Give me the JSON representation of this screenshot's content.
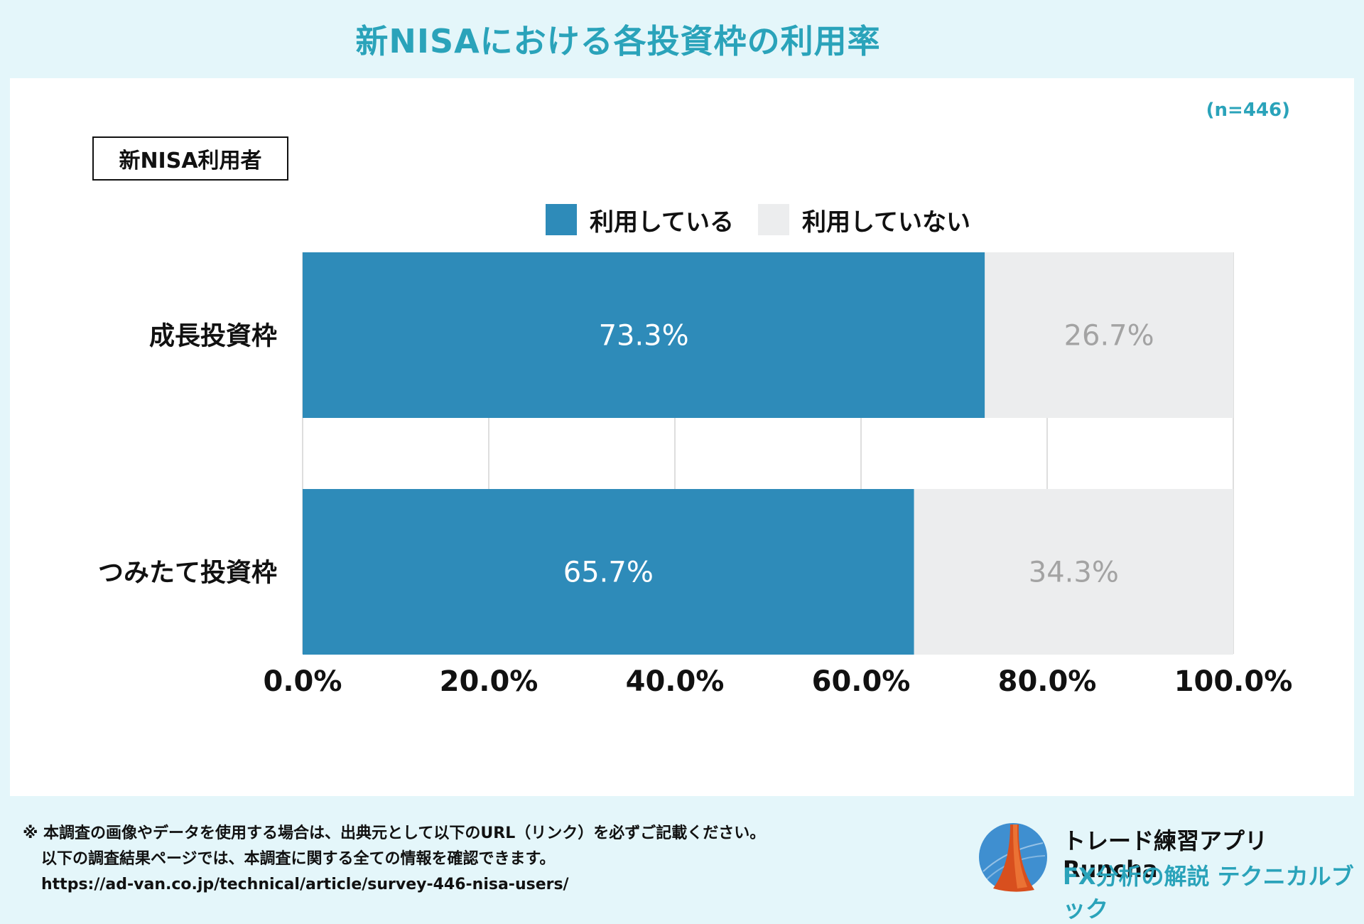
{
  "header": {
    "title": "新NISAにおける各投資枠の利用率"
  },
  "chart_meta": {
    "sample_size": "(n=446)",
    "group_label": "新NISA利用者"
  },
  "colors": {
    "using": "#2e8bb9",
    "not_using": "#ecedee",
    "accent": "#2aa3ba"
  },
  "chart_data": {
    "type": "bar",
    "orientation": "horizontal-stacked-100",
    "categories": [
      "成長投資枠",
      "つみたて投資枠"
    ],
    "series": [
      {
        "name": "利用している",
        "values": [
          73.3,
          65.7
        ],
        "labels": [
          "73.3%",
          "65.7%"
        ]
      },
      {
        "name": "利用していない",
        "values": [
          26.7,
          34.3
        ],
        "labels": [
          "26.7%",
          "34.3%"
        ]
      }
    ],
    "xlim": [
      0,
      100
    ],
    "xticks": [
      "0.0%",
      "20.0%",
      "40.0%",
      "60.0%",
      "80.0%",
      "100.0%"
    ],
    "grid": true,
    "legend": "top"
  },
  "footer": {
    "line1": "※ 本調査の画像やデータを使用する場合は、出典元として以下のURL（リンク）を必ずご記載ください。",
    "line2": "以下の調査結果ページでは、本調査に関する全ての情報を確認できます。",
    "line3": "https://ad-van.co.jp/technical/article/survey-446-nisa-users/"
  },
  "brand": {
    "name": "トレード練習アプリ  Runcha",
    "tagline": "FX分析の解説  テクニカルブック",
    "logo_icon": "runcha-logo-icon"
  }
}
